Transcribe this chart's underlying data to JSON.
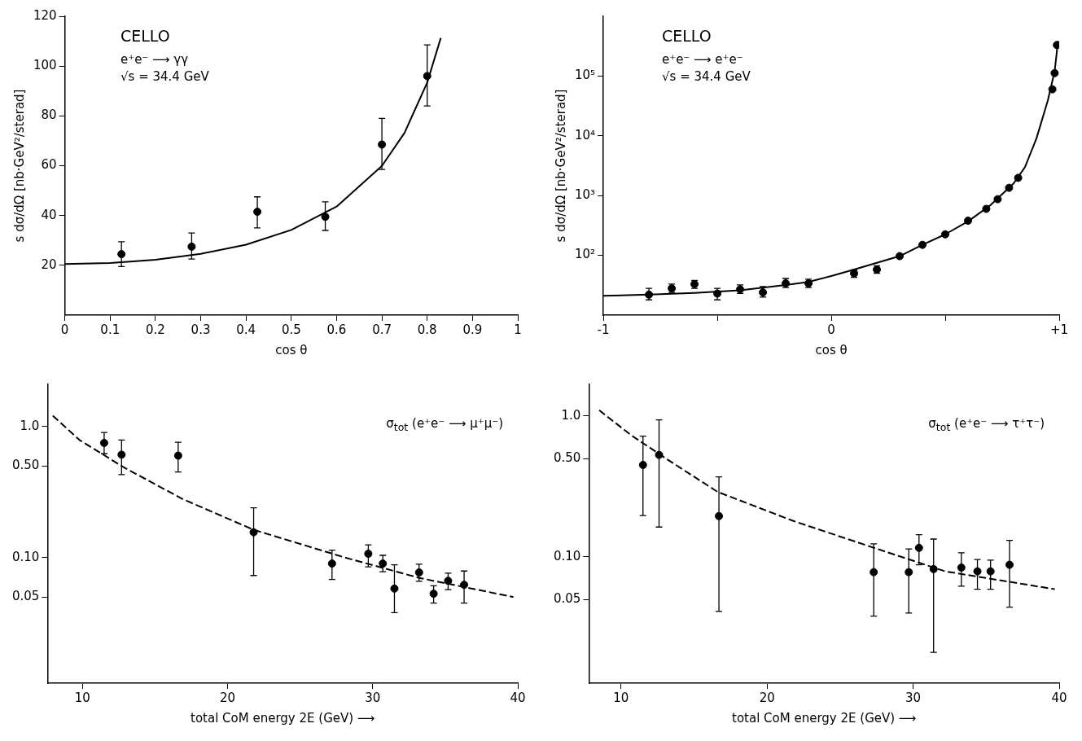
{
  "chart_data": [
    {
      "type": "scatter",
      "xlabel": "cos θ",
      "ylabel": "s dσ/dΩ [nb·GeV²/sterad]",
      "annotations": [
        "CELLO",
        "e⁺e⁻ ⟶ γγ",
        "√s = 34.4 GeV"
      ],
      "xlim": [
        0,
        1
      ],
      "xticks": [
        0,
        0.1,
        0.2,
        0.3,
        0.4,
        0.5,
        0.6,
        0.7,
        0.8,
        0.9,
        1
      ],
      "ylim": [
        0,
        120
      ],
      "yticks": [
        20,
        40,
        60,
        80,
        100,
        120
      ],
      "series": [
        {
          "marker": "circle",
          "color": "#000000",
          "x": [
            0.125,
            0.28,
            0.425,
            0.575,
            0.7,
            0.8
          ],
          "values": [
            24.5,
            27.5,
            41.5,
            39.5,
            68.5,
            96
          ],
          "errors": [
            [
              19.5,
              29.5
            ],
            [
              22.5,
              33
            ],
            [
              35,
              47.5
            ],
            [
              34,
              45.5
            ],
            [
              58.5,
              79
            ],
            [
              84,
              108.5
            ]
          ]
        },
        {
          "type": "line",
          "marker": "none",
          "line_style": "solid",
          "color": "#000000",
          "x": [
            0,
            0.1,
            0.2,
            0.3,
            0.4,
            0.5,
            0.6,
            0.7,
            0.75,
            0.8,
            0.83
          ],
          "values": [
            20.5,
            20.9,
            22.2,
            24.6,
            28.3,
            34.2,
            43.6,
            59.9,
            73.2,
            93.4,
            111.3
          ]
        }
      ]
    },
    {
      "type": "scatter",
      "xlabel": "cos θ",
      "ylabel": "s dσ/dΩ [nb·GeV²/sterad]",
      "annotations": [
        "CELLO",
        "e⁺e⁻ ⟶ e⁺e⁻",
        "√s = 34.4 GeV"
      ],
      "log": "y",
      "xlim": [
        -1,
        1
      ],
      "xticks": [
        -1,
        {
          "value": -0.5,
          "label": null
        },
        0,
        {
          "value": 0.5,
          "label": null
        },
        {
          "value": 1,
          "label": "+1"
        }
      ],
      "ylim": [
        10,
        1000000
      ],
      "yticks": [
        {
          "value": 100,
          "label": "10²"
        },
        {
          "value": 1000,
          "label": "10³"
        },
        {
          "value": 10000,
          "label": "10⁴"
        },
        {
          "value": 100000,
          "label": "10⁵"
        }
      ],
      "series": [
        {
          "marker": "circle",
          "color": "#000000",
          "x": [
            -0.8,
            -0.7,
            -0.6,
            -0.5,
            -0.4,
            -0.3,
            -0.2,
            -0.1,
            0.1,
            0.2,
            0.3,
            0.4,
            0.5,
            0.6,
            0.68,
            0.73,
            0.78,
            0.82,
            0.97,
            0.98,
            0.99
          ],
          "values": [
            22,
            28,
            33,
            23,
            27,
            24,
            34,
            34,
            50,
            58,
            97,
            150,
            225,
            380,
            600,
            870,
            1350,
            1980,
            60000,
            112000,
            330000
          ],
          "errors": [
            [
              18,
              28
            ],
            [
              24,
              33
            ],
            [
              28,
              38
            ],
            [
              18,
              28
            ],
            [
              23,
              32
            ],
            [
              20,
              30
            ],
            [
              29,
              41
            ],
            [
              29,
              40
            ],
            [
              43,
              57
            ],
            [
              50,
              67
            ],
            null,
            null,
            null,
            null,
            null,
            null,
            null,
            null,
            null,
            null,
            null
          ]
        },
        {
          "type": "line",
          "marker": "none",
          "line_style": "solid",
          "color": "#000000",
          "x": [
            -1,
            -0.8,
            -0.6,
            -0.4,
            -0.2,
            -0.1,
            0,
            0.1,
            0.2,
            0.3,
            0.4,
            0.5,
            0.6,
            0.7,
            0.8,
            0.85,
            0.9,
            0.95,
            0.98,
            0.995
          ],
          "values": [
            21,
            22,
            23.5,
            26,
            32,
            36,
            45,
            58,
            75,
            97,
            150,
            225,
            370,
            700,
            1600,
            3000,
            9000,
            39000,
            120000,
            390000
          ]
        }
      ]
    },
    {
      "type": "scatter",
      "xlabel": "total CoM energy 2E (GeV) ⟶",
      "annotations": [
        "σ$_{tot}$ (e⁺e⁻ ⟶ μ⁺μ⁻)"
      ],
      "log": "y",
      "xlim": [
        7.6,
        40
      ],
      "xticks": [
        10,
        20,
        30,
        40
      ],
      "ylim": [
        0.011,
        2.1
      ],
      "yticks": [
        {
          "value": 1,
          "label": "1.0"
        },
        {
          "value": 0.5,
          "label": "0.50"
        },
        {
          "value": 0.1,
          "label": "0.10"
        },
        {
          "value": 0.05,
          "label": "0.05"
        }
      ],
      "series": [
        {
          "marker": "circle",
          "color": "#000000",
          "x": [
            11.5,
            12.7,
            16.6,
            21.8,
            27.2,
            29.7,
            30.7,
            31.5,
            33.2,
            34.2,
            35.2,
            36.3
          ],
          "values": [
            0.75,
            0.61,
            0.6,
            0.156,
            0.09,
            0.107,
            0.09,
            0.058,
            0.077,
            0.053,
            0.0665,
            0.062
          ],
          "errors": [
            [
              0.62,
              0.9
            ],
            [
              0.43,
              0.79
            ],
            [
              0.45,
              0.76
            ],
            [
              0.073,
              0.24
            ],
            [
              0.068,
              0.114
            ],
            [
              0.085,
              0.125
            ],
            [
              0.078,
              0.104
            ],
            [
              0.038,
              0.088
            ],
            [
              0.066,
              0.089
            ],
            [
              0.045,
              0.061
            ],
            [
              0.057,
              0.076
            ],
            [
              0.045,
              0.079
            ]
          ]
        },
        {
          "type": "line",
          "marker": "none",
          "line_style": "dashed",
          "color": "#000000",
          "x": [
            7.96,
            9.8,
            12.9,
            16.9,
            21.8,
            28.1,
            33.2,
            39.7
          ],
          "values": [
            1.21,
            0.79,
            0.485,
            0.28,
            0.163,
            0.1,
            0.07,
            0.05
          ]
        }
      ]
    },
    {
      "type": "scatter",
      "xlabel": "total CoM energy 2E (GeV) ⟶",
      "annotations": [
        "σ$_{tot}$ (e⁺e⁻ ⟶ τ⁺τ⁻)"
      ],
      "log": "y",
      "xlim": [
        7.8,
        40
      ],
      "xticks": [
        10,
        20,
        30,
        40
      ],
      "ylim": [
        0.0127,
        1.68
      ],
      "yticks": [
        {
          "value": 1,
          "label": "1.0"
        },
        {
          "value": 0.5,
          "label": "0.50"
        },
        {
          "value": 0.1,
          "label": "0.10"
        },
        {
          "value": 0.05,
          "label": "0.05"
        }
      ],
      "series": [
        {
          "marker": "circle",
          "color": "#000000",
          "x": [
            11.5,
            12.6,
            16.7,
            27.3,
            29.7,
            30.4,
            31.4,
            33.3,
            34.4,
            35.3,
            36.6
          ],
          "values": [
            0.45,
            0.53,
            0.195,
            0.078,
            0.078,
            0.116,
            0.082,
            0.084,
            0.079,
            0.079,
            0.088
          ],
          "errors": [
            [
              0.197,
              0.72
            ],
            [
              0.163,
              0.94
            ],
            [
              0.041,
              0.37
            ],
            [
              0.038,
              0.124
            ],
            [
              0.04,
              0.114
            ],
            [
              0.088,
              0.144
            ],
            [
              0.021,
              0.134
            ],
            [
              0.062,
              0.107
            ],
            [
              0.059,
              0.096
            ],
            [
              0.059,
              0.095
            ],
            [
              0.044,
              0.131
            ]
          ]
        },
        {
          "type": "line",
          "marker": "none",
          "line_style": "dashed",
          "color": "#000000",
          "x": [
            8.5,
            10.7,
            13.2,
            16.6,
            21.8,
            27,
            32.2,
            39.7
          ],
          "values": [
            1.1,
            0.73,
            0.49,
            0.29,
            0.18,
            0.119,
            0.079,
            0.059
          ]
        }
      ]
    }
  ]
}
